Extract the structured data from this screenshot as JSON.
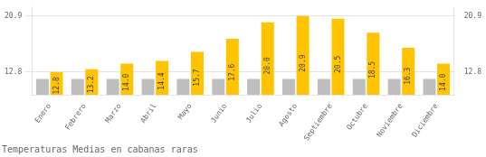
{
  "chart_data": {
    "type": "bar",
    "title": "Temperaturas Medias en cabanas raras",
    "categories": [
      "Enero",
      "Febrero",
      "Marzo",
      "Abril",
      "Mayo",
      "Junio",
      "Julio",
      "Agosto",
      "Septiembre",
      "Octubre",
      "Noviembre",
      "Diciembre"
    ],
    "series": [
      {
        "color": "#BEBEBE",
        "values": [
          11.8,
          11.8,
          11.8,
          11.8,
          11.8,
          11.8,
          11.8,
          11.8,
          11.8,
          11.8,
          11.8,
          11.8
        ]
      },
      {
        "color": "#FFC300",
        "values": [
          12.8,
          13.2,
          14.0,
          14.4,
          15.7,
          17.6,
          20.0,
          20.9,
          20.5,
          18.5,
          16.3,
          14.0
        ],
        "value_labels": [
          "12.8",
          "13.2",
          "14.0",
          "14.4",
          "15.7",
          "17.6",
          "20.0",
          "20.9",
          "20.5",
          "18.5",
          "16.3",
          "14.0"
        ],
        "data_labels": true
      }
    ],
    "ylim": [
      9.5,
      22.2
    ],
    "yticks": [
      12.8,
      20.9
    ],
    "y2lim": [
      9.5,
      22.2
    ],
    "y2ticks": [
      12.8,
      20.9
    ],
    "grid": true
  }
}
